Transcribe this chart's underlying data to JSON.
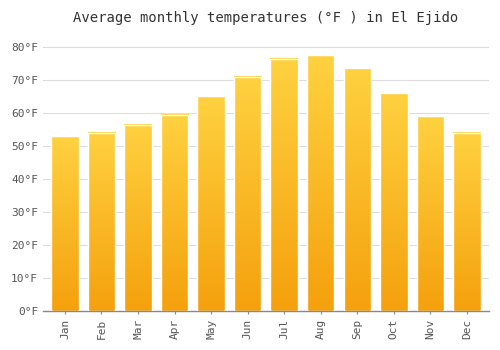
{
  "title": "Average monthly temperatures (°F ) in El Ejido",
  "months": [
    "Jan",
    "Feb",
    "Mar",
    "Apr",
    "May",
    "Jun",
    "Jul",
    "Aug",
    "Sep",
    "Oct",
    "Nov",
    "Dec"
  ],
  "values": [
    53,
    54,
    56.5,
    59.5,
    65,
    71,
    76.5,
    77.5,
    73.5,
    66,
    59,
    54
  ],
  "bar_color_top": "#FFC040",
  "bar_color_bottom": "#F5A800",
  "bar_edge_color": "#FFFFFF",
  "background_color": "#FFFFFF",
  "plot_bg_color": "#FFFFFF",
  "grid_color": "#DDDDDD",
  "ylim": [
    0,
    85
  ],
  "yticks": [
    0,
    10,
    20,
    30,
    40,
    50,
    60,
    70,
    80
  ],
  "ytick_labels": [
    "0°F",
    "10°F",
    "20°F",
    "30°F",
    "40°F",
    "50°F",
    "60°F",
    "70°F",
    "80°F"
  ],
  "title_fontsize": 10,
  "tick_fontsize": 8,
  "figsize": [
    5.0,
    3.5
  ],
  "dpi": 100,
  "bar_width": 0.75
}
